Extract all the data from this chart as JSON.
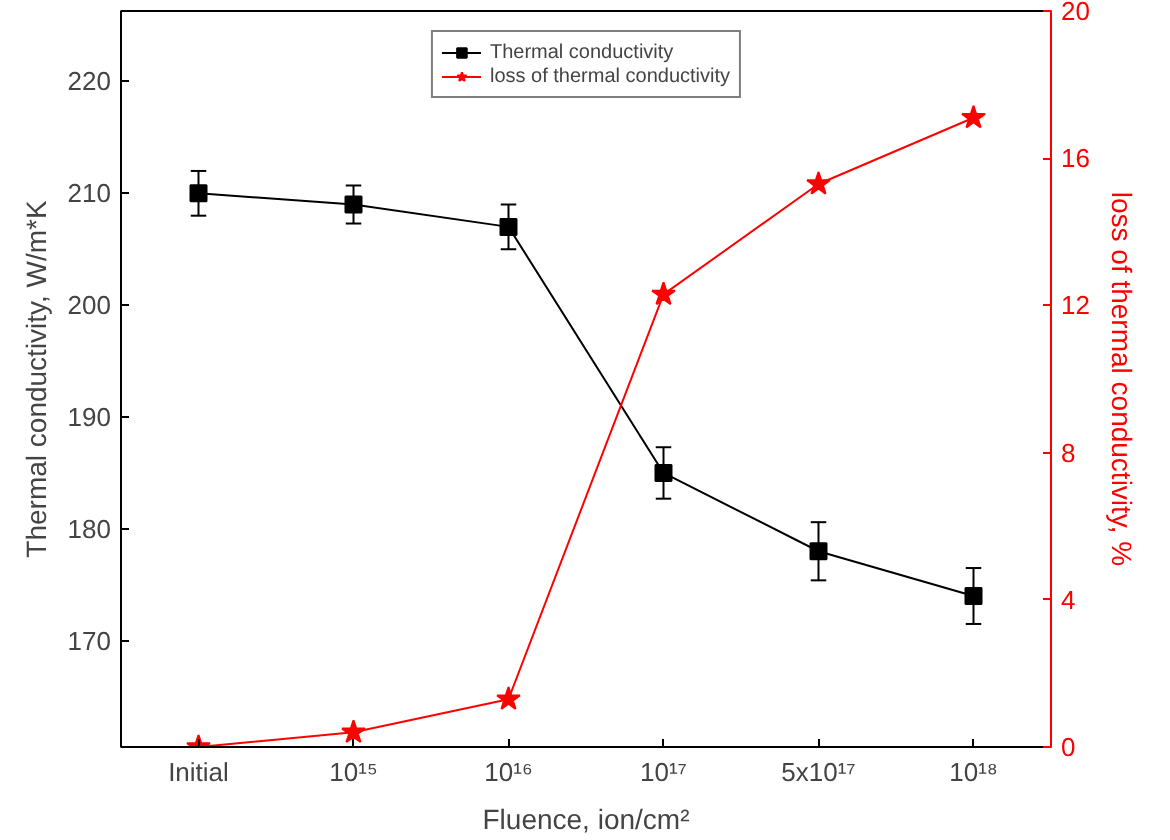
{
  "chart_data": {
    "type": "line",
    "xlabel": "Fluence, ion/cm²",
    "ylabel": "Thermal conductivity, W/m*K",
    "y2label": "loss of thermal conductivity, %",
    "categories": [
      "Initial",
      "10¹⁵",
      "10¹⁶",
      "10¹⁷",
      "5x10¹⁷",
      "10¹⁸"
    ],
    "series": [
      {
        "name": "Thermal conductivity",
        "color": "#000000",
        "marker": "square",
        "values": [
          210,
          209,
          207,
          185,
          178,
          174
        ],
        "errors": [
          2,
          1.7,
          2,
          2.3,
          2.6,
          2.5
        ]
      },
      {
        "name": "loss of thermal conductivity",
        "color": "#ff0000",
        "marker": "star",
        "axis": "y2",
        "values": [
          0,
          0.4,
          1.3,
          12.3,
          15.3,
          17.1
        ]
      }
    ],
    "ylim": [
      160.5,
      226.3
    ],
    "yticks": [
      170,
      180,
      190,
      200,
      210,
      220
    ],
    "y2lim": [
      0,
      20
    ],
    "y2ticks": [
      0,
      4,
      8,
      12,
      16,
      20
    ],
    "legend": "top",
    "grid": false
  }
}
